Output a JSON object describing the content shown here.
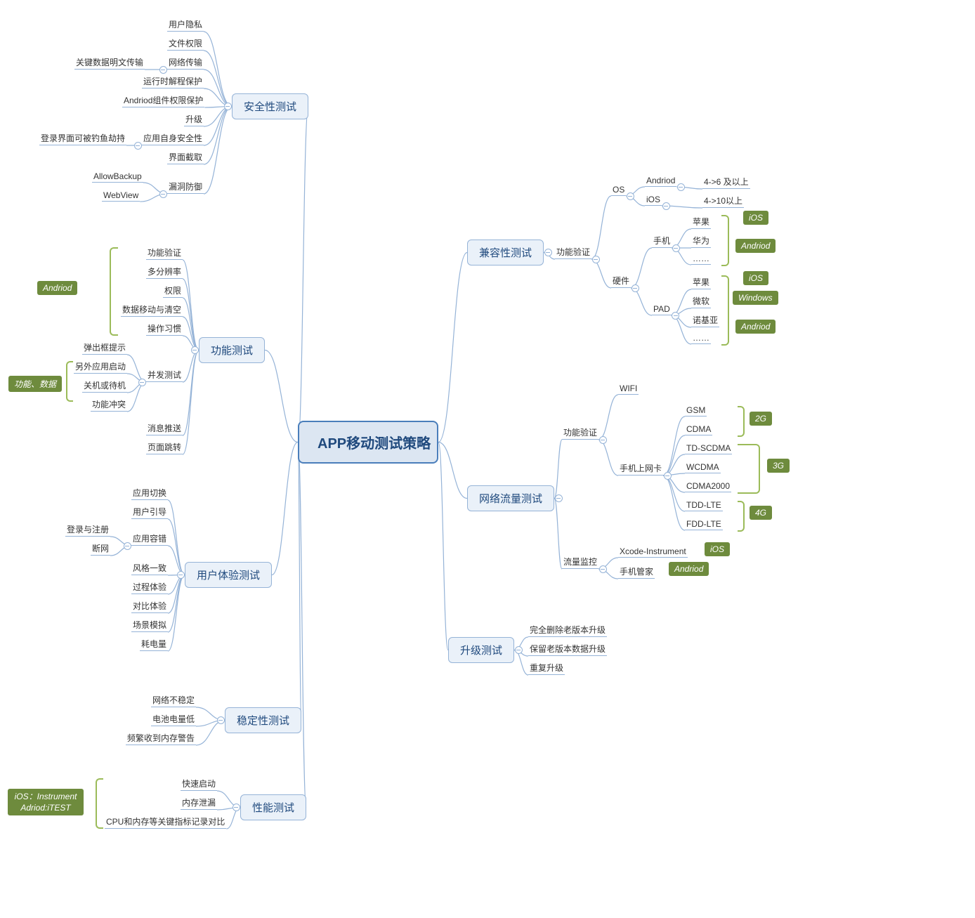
{
  "colors": {
    "root_border": "#4a7ebb",
    "root_fill": "#dce6f2",
    "root_text": "#1f497d",
    "branch_border": "#95b3d7",
    "branch_fill": "#eaf1f9",
    "branch_text": "#1f497d",
    "leaf_line": "#95b3d7",
    "leaf_text": "#333333",
    "connector": "#95b3d7",
    "tag_bg": "#6e8b3d",
    "tag_text": "#ffffff",
    "bracket": "#9bbb59",
    "collapse_border": "#95b3d7",
    "collapse_dash": "#95b3d7"
  },
  "root": {
    "label": "APP移动测试策略"
  },
  "branches": {
    "security": {
      "label": "安全性测试"
    },
    "function": {
      "label": "功能测试"
    },
    "ux": {
      "label": "用户体验测试"
    },
    "stability": {
      "label": "稳定性测试"
    },
    "performance": {
      "label": "性能测试"
    },
    "compat": {
      "label": "兼容性测试"
    },
    "network": {
      "label": "网络流量测试"
    },
    "upgrade": {
      "label": "升级测试"
    }
  },
  "security_leaves": {
    "l1": "用户隐私",
    "l2": "文件权限",
    "l3": "网络传输",
    "l3_side": "关键数据明文传输",
    "l4": "运行时解程保护",
    "l5": "Andriod组件权限保护",
    "l6": "升级",
    "l7": "应用自身安全性",
    "l7_side": "登录界面可被钓鱼劫持",
    "l8": "界面截取",
    "l9": "漏洞防御",
    "l9_side1": "AllowBackup",
    "l9_side2": "WebView"
  },
  "function_leaves": {
    "l1": "功能验证",
    "l2": "多分辨率",
    "l3": "权限",
    "l4": "数据移动与清空",
    "l5": "操作习惯",
    "l6": "并发测试",
    "l6a": "弹出框提示",
    "l6b": "另外应用启动",
    "l6c": "关机或待机",
    "l6d": "功能冲突",
    "l7": "消息推送",
    "l8": "页面跳转",
    "tag_android": "Andriod",
    "tag_funcdata": "功能、数据"
  },
  "ux_leaves": {
    "l1": "应用切换",
    "l2": "用户引导",
    "l3": "应用容错",
    "l3a": "登录与注册",
    "l3b": "断网",
    "l4": "风格一致",
    "l5": "过程体验",
    "l6": "对比体验",
    "l7": "场景模拟",
    "l8": "耗电量"
  },
  "stability_leaves": {
    "l1": "网络不稳定",
    "l2": "电池电量低",
    "l3": "频繁收到内存警告"
  },
  "performance_leaves": {
    "l1": "快速启动",
    "l2": "内存泄漏",
    "l3": "CPU和内存等关键指标记录对比",
    "tag1": "iOS：Instrument",
    "tag2": "Adriod:iTEST"
  },
  "compat_leaves": {
    "main": "功能验证",
    "os": "OS",
    "os_android": "Andriod",
    "os_android_v": "4->6 及以上",
    "os_ios": "iOS",
    "os_ios_v": "4->10以上",
    "hw": "硬件",
    "phone": "手机",
    "phone_a": "苹果",
    "phone_b": "华为",
    "phone_c": "……",
    "pad": "PAD",
    "pad_a": "苹果",
    "pad_b": "微软",
    "pad_c": "诺基亚",
    "pad_d": "……",
    "tag_ios": "iOS",
    "tag_android": "Andriod",
    "tag_windows": "Windows"
  },
  "network_leaves": {
    "main": "功能验证",
    "wifi": "WIFI",
    "card": "手机上网卡",
    "c1": "GSM",
    "c2": "CDMA",
    "c3": "TD-SCDMA",
    "c4": "WCDMA",
    "c5": "CDMA2000",
    "c6": "TDD-LTE",
    "c7": "FDD-LTE",
    "tag_2g": "2G",
    "tag_3g": "3G",
    "tag_4g": "4G",
    "monitor": "流量监控",
    "m1": "Xcode-Instrument",
    "m2": "手机管家",
    "tag_ios": "iOS",
    "tag_android": "Andriod"
  },
  "upgrade_leaves": {
    "l1": "完全删除老版本升级",
    "l2": "保留老版本数据升级",
    "l3": "重复升级"
  }
}
